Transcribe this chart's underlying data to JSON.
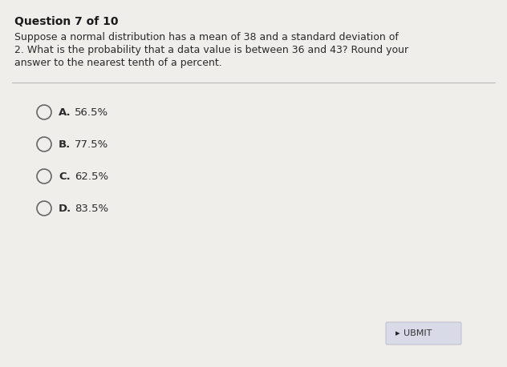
{
  "title": "Question 7 of 10",
  "question_line1": "Suppose a normal distribution has a mean of 38 and a standard deviation of",
  "question_line2": "2. What is the probability that a data value is between 36 and 43? Round your",
  "question_line3": "answer to the nearest tenth of a percent.",
  "options": [
    {
      "label": "A.",
      "text": "56.5%"
    },
    {
      "label": "B.",
      "text": "77.5%"
    },
    {
      "label": "C.",
      "text": "62.5%"
    },
    {
      "label": "D.",
      "text": "83.5%"
    }
  ],
  "submit_label": "UBMIT",
  "bg_color": "#f0eeea",
  "title_color": "#1a1a1a",
  "question_color": "#2a2a2a",
  "option_color": "#2a2a2a",
  "circle_edgecolor": "#666666",
  "divider_color": "#bbbbbb",
  "submit_bg": "#d8dae8",
  "submit_border": "#c0c2d0",
  "submit_text_color": "#333333",
  "cursor_color": "#222222"
}
